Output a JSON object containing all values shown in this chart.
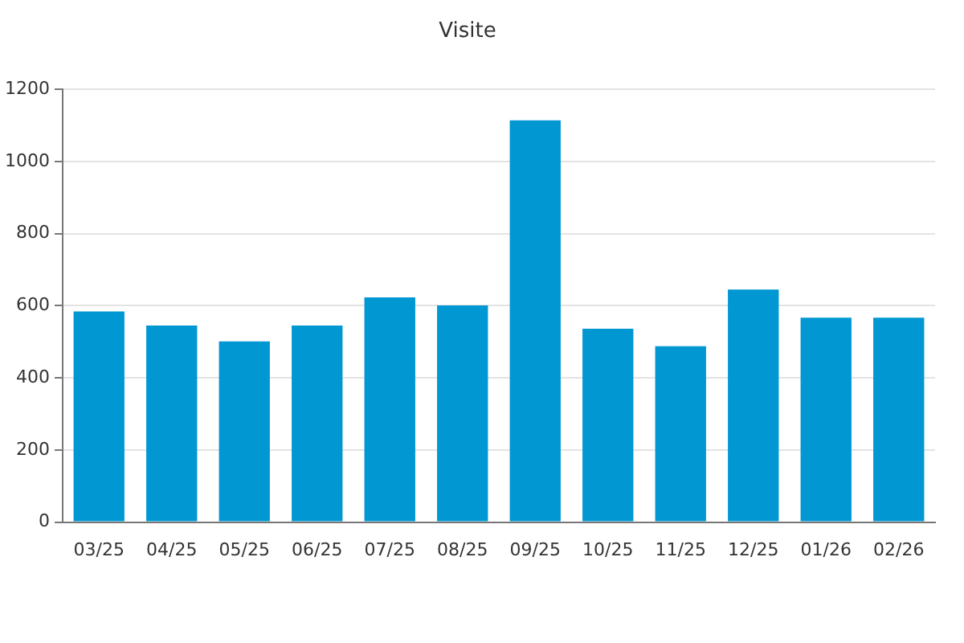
{
  "chart_data": {
    "type": "bar",
    "title": "Visite",
    "categories": [
      "03/25",
      "04/25",
      "05/25",
      "06/25",
      "07/25",
      "08/25",
      "09/25",
      "10/25",
      "11/25",
      "12/25",
      "01/26",
      "02/26"
    ],
    "values": [
      584,
      545,
      501,
      545,
      623,
      601,
      1114,
      536,
      488,
      645,
      567,
      567
    ],
    "color": "#0097d3",
    "ylim": [
      0,
      1200
    ],
    "yticks": [
      0,
      200,
      400,
      600,
      800,
      1000,
      1200
    ],
    "grid": "y",
    "legend": false
  }
}
